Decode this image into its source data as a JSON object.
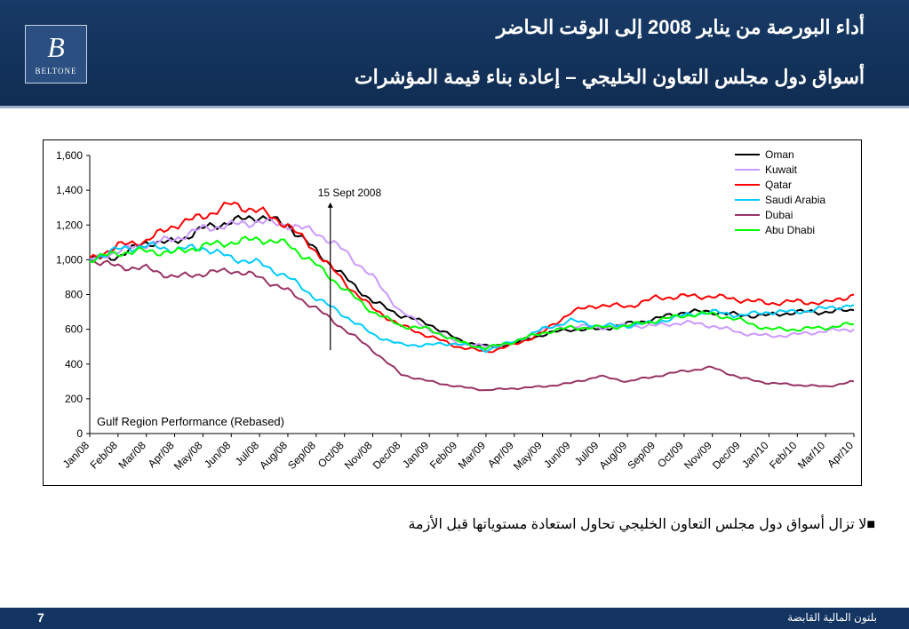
{
  "header": {
    "title_line1": "أداء البورصة من يناير 2008 إلى الوقت الحاضر",
    "title_line2": "أسواق دول مجلس التعاون الخليجي – إعادة بناء قيمة المؤشرات",
    "logo_text": "BELTONE",
    "logo_mark": "B"
  },
  "body": {
    "bullet_text": "لا تزال أسواق دول مجلس التعاون الخليجي تحاول استعادة مستوياتها قبل الأزمة"
  },
  "footer": {
    "page_number": "7",
    "company": "بلتون المالية القابضة"
  },
  "colors": {
    "header_bg": "#143562",
    "Oman": "#000000",
    "Kuwait": "#cc99ff",
    "Qatar": "#ff0000",
    "Saudi Arabia": "#00ccff",
    "Dubai": "#993366",
    "Abu Dhabi": "#00ff00"
  },
  "chart_data": {
    "type": "line",
    "title": "Gulf Region Performance (Rebased)",
    "xlabel": "",
    "ylabel": "",
    "ylim": [
      0,
      1600
    ],
    "yticks": [
      0,
      200,
      400,
      600,
      800,
      1000,
      1200,
      1400,
      1600
    ],
    "ytick_labels": [
      "0",
      "200",
      "400",
      "600",
      "800",
      "1,000",
      "1,200",
      "1,400",
      "1,600"
    ],
    "grid": false,
    "legend_position": "top-right",
    "categories": [
      "Jan/08",
      "Feb/08",
      "Mar/08",
      "Apr/08",
      "May/08",
      "Jun/08",
      "Jul/08",
      "Aug/08",
      "Sep/08",
      "Oct/08",
      "Nov/08",
      "Dec/08",
      "Jan/09",
      "Feb/09",
      "Mar/09",
      "Apr/09",
      "May/09",
      "Jun/09",
      "Jul/09",
      "Aug/09",
      "Sep/09",
      "Oct/09",
      "Nov/09",
      "Dec/09",
      "Jan/10",
      "Feb/10",
      "Mar/10",
      "Apr/10"
    ],
    "annotation": {
      "text": "15 Sept 2008",
      "x": 8.5
    },
    "series": [
      {
        "name": "Oman",
        "values": [
          1000,
          1020,
          1100,
          1100,
          1180,
          1220,
          1250,
          1200,
          1050,
          900,
          760,
          680,
          630,
          540,
          500,
          520,
          570,
          600,
          600,
          630,
          660,
          700,
          700,
          680,
          680,
          700,
          700,
          710
        ]
      },
      {
        "name": "Kuwait",
        "values": [
          1000,
          1050,
          1090,
          1120,
          1180,
          1200,
          1220,
          1200,
          1160,
          1050,
          900,
          700,
          600,
          520,
          500,
          520,
          600,
          620,
          610,
          620,
          620,
          640,
          620,
          580,
          560,
          570,
          590,
          600
        ]
      },
      {
        "name": "Qatar",
        "values": [
          1000,
          1080,
          1110,
          1200,
          1250,
          1320,
          1280,
          1200,
          1050,
          870,
          720,
          620,
          560,
          500,
          470,
          510,
          580,
          700,
          740,
          730,
          780,
          790,
          790,
          770,
          750,
          760,
          750,
          800
        ]
      },
      {
        "name": "Saudi Arabia",
        "values": [
          1000,
          1060,
          1080,
          1060,
          1070,
          1010,
          980,
          900,
          780,
          680,
          570,
          510,
          510,
          520,
          480,
          530,
          600,
          650,
          620,
          620,
          640,
          680,
          700,
          680,
          700,
          700,
          720,
          740
        ]
      },
      {
        "name": "Dubai",
        "values": [
          1000,
          960,
          950,
          900,
          920,
          940,
          900,
          820,
          720,
          600,
          480,
          340,
          300,
          270,
          250,
          260,
          270,
          290,
          330,
          300,
          330,
          360,
          380,
          320,
          290,
          280,
          270,
          300
        ]
      },
      {
        "name": "Abu Dhabi",
        "values": [
          1000,
          1040,
          1050,
          1040,
          1080,
          1100,
          1120,
          1090,
          970,
          830,
          700,
          620,
          600,
          530,
          490,
          530,
          580,
          610,
          610,
          620,
          650,
          680,
          690,
          650,
          600,
          600,
          610,
          630
        ]
      }
    ]
  }
}
